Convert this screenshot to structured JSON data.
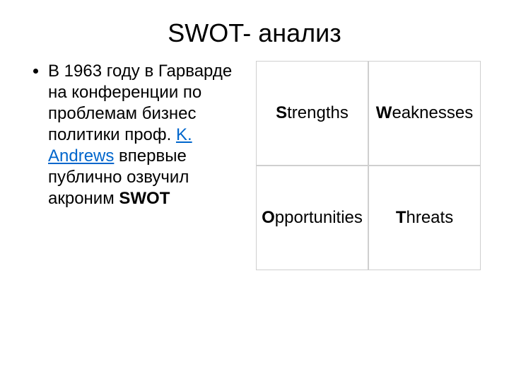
{
  "title": "SWOT- анализ",
  "left": {
    "pre": "В 1963 году в Гарварде на конференции по проблемам бизнес политики проф. ",
    "link": "K. Andrews",
    "mid": " впервые публично озвучил акроним ",
    "acronym": "SWOT"
  },
  "table": {
    "type": "table",
    "columns": 2,
    "rows": 2,
    "border_color": "#cfcfcf",
    "background_color": "#ffffff",
    "text_color": "#000000",
    "fontsize": 24,
    "cells": [
      {
        "first": "S",
        "rest": "trengths"
      },
      {
        "first": "W",
        "rest": "eaknesses"
      },
      {
        "first": "O",
        "rest": "pportunities"
      },
      {
        "first": "T",
        "rest": "hreats"
      }
    ]
  },
  "colors": {
    "link": "#0066cc",
    "text": "#000000",
    "background": "#ffffff"
  }
}
